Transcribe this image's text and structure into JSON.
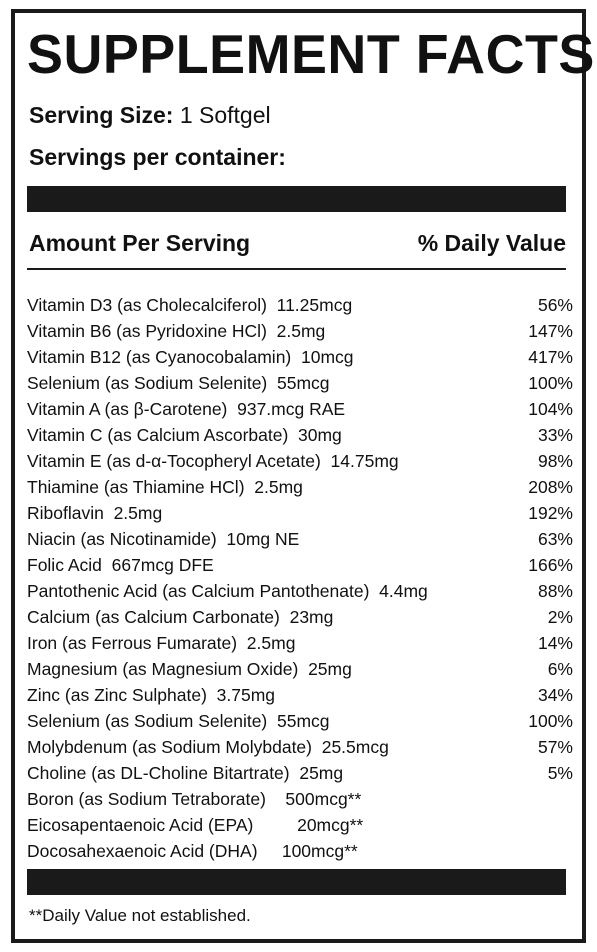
{
  "title": "SUPPLEMENT FACTS",
  "serving_size": {
    "label": "Serving Size:",
    "value": " 1 Softgel"
  },
  "servings_per_container": {
    "label": "Servings per container:",
    "value": ""
  },
  "header": {
    "amount_per_serving": "Amount Per Serving",
    "daily_value": "% Daily Value"
  },
  "nutrients": [
    {
      "name": "Vitamin D3 (as Cholecalciferol)  11.25mcg",
      "dv": "56%"
    },
    {
      "name": "Vitamin B6 (as Pyridoxine HCl)  2.5mg",
      "dv": "147%"
    },
    {
      "name": "Vitamin B12 (as Cyanocobalamin)  10mcg",
      "dv": "417%"
    },
    {
      "name": "Selenium (as Sodium Selenite)  55mcg",
      "dv": "100%"
    },
    {
      "name": "Vitamin A (as β-Carotene)  937.mcg RAE",
      "dv": "104%"
    },
    {
      "name": "Vitamin C (as Calcium Ascorbate)  30mg",
      "dv": "33%"
    },
    {
      "name": "Vitamin E (as d-α-Tocopheryl Acetate)  14.75mg",
      "dv": "98%"
    },
    {
      "name": "Thiamine (as Thiamine HCl)  2.5mg",
      "dv": "208%"
    },
    {
      "name": "Riboflavin  2.5mg",
      "dv": "192%"
    },
    {
      "name": "Niacin (as Nicotinamide)  10mg NE",
      "dv": "63%"
    },
    {
      "name": "Folic Acid  667mcg DFE",
      "dv": "166%"
    },
    {
      "name": "Pantothenic Acid (as Calcium Pantothenate)  4.4mg",
      "dv": "88%"
    },
    {
      "name": "Calcium (as Calcium Carbonate)  23mg",
      "dv": "2%"
    },
    {
      "name": "Iron (as Ferrous Fumarate)  2.5mg",
      "dv": "14%"
    },
    {
      "name": "Magnesium (as Magnesium Oxide)  25mg",
      "dv": "6%"
    },
    {
      "name": "Zinc (as Zinc Sulphate)  3.75mg",
      "dv": "34%"
    },
    {
      "name": "Selenium (as Sodium Selenite)  55mcg",
      "dv": "100%"
    },
    {
      "name": "Molybdenum (as Sodium Molybdate)  25.5mcg",
      "dv": "57%"
    },
    {
      "name": "Choline (as DL-Choline Bitartrate)  25mg",
      "dv": "5%"
    },
    {
      "name": "Boron (as Sodium Tetraborate)    500mcg**",
      "dv": ""
    },
    {
      "name": "Eicosapentaenoic Acid (EPA)         20mcg**",
      "dv": ""
    },
    {
      "name": "Docosahexaenoic Acid (DHA)     100mcg**",
      "dv": ""
    }
  ],
  "footnote": "**Daily Value not established.",
  "colors": {
    "ink": "#1a1a1a",
    "background": "#ffffff"
  }
}
